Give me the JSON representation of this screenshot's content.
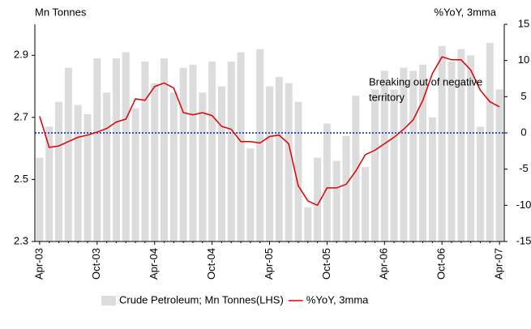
{
  "chart_data": {
    "type": "bar-line",
    "ylabel": "Mn Tonnes",
    "y2label": "%YoY, 3mma",
    "categories": [
      "Apr-03",
      null,
      null,
      null,
      null,
      null,
      "Oct-03",
      null,
      null,
      null,
      null,
      null,
      "Apr-04",
      null,
      null,
      null,
      null,
      null,
      "Oct-04",
      null,
      null,
      null,
      null,
      null,
      "Apr-05",
      null,
      null,
      null,
      null,
      null,
      "Oct-05",
      null,
      null,
      null,
      null,
      null,
      "Apr-06",
      null,
      null,
      null,
      null,
      null,
      "Oct-06",
      null,
      null,
      null,
      null,
      null,
      "Apr-07"
    ],
    "series": [
      {
        "name": "Crude Petroleum; Mn Tonnes(LHS)",
        "type": "bar",
        "color": "#dcdcdc",
        "axis": "y",
        "values": [
          2.57,
          2.67,
          2.75,
          2.86,
          2.74,
          2.71,
          2.89,
          2.78,
          2.89,
          2.91,
          2.73,
          2.88,
          2.81,
          2.89,
          2.78,
          2.86,
          2.87,
          2.78,
          2.88,
          2.8,
          2.88,
          2.91,
          2.6,
          2.92,
          2.8,
          2.83,
          2.81,
          2.75,
          2.41,
          2.57,
          2.68,
          2.56,
          2.64,
          2.77,
          2.54,
          2.79,
          2.85,
          2.79,
          2.86,
          2.85,
          2.87,
          2.7,
          2.93,
          2.88,
          2.92,
          2.9,
          2.67,
          2.94,
          2.79
        ]
      },
      {
        "name": "%YoY, 3mma",
        "type": "line",
        "color": "#e00000",
        "axis": "y2",
        "values": [
          2.3,
          -2.0,
          -1.8,
          -1.2,
          -0.6,
          -0.3,
          0.1,
          0.6,
          1.5,
          1.9,
          4.7,
          4.5,
          6.4,
          6.9,
          6.2,
          2.8,
          2.5,
          2.8,
          2.4,
          0.9,
          0.5,
          -1.2,
          -1.2,
          -1.4,
          -0.5,
          -0.3,
          -1.5,
          -7.3,
          -9.4,
          -10.0,
          -7.6,
          -7.6,
          -7.1,
          -5.3,
          -3.0,
          -2.4,
          -1.5,
          -0.6,
          0.5,
          1.8,
          4.5,
          8.2,
          10.5,
          10.1,
          10.1,
          8.7,
          5.9,
          4.3,
          3.6
        ]
      }
    ],
    "ylim": [
      2.3,
      3.0
    ],
    "yticks": [
      2.3,
      2.5,
      2.7,
      2.9
    ],
    "y2lim": [
      -15,
      15
    ],
    "y2ticks": [
      -15,
      -10,
      -5,
      0,
      5,
      10,
      15
    ],
    "y2_reference_line": 0,
    "reference_color": "#3355cc",
    "annotation": [
      "Breaking out of negative",
      "territory"
    ],
    "legend": "bottom"
  }
}
